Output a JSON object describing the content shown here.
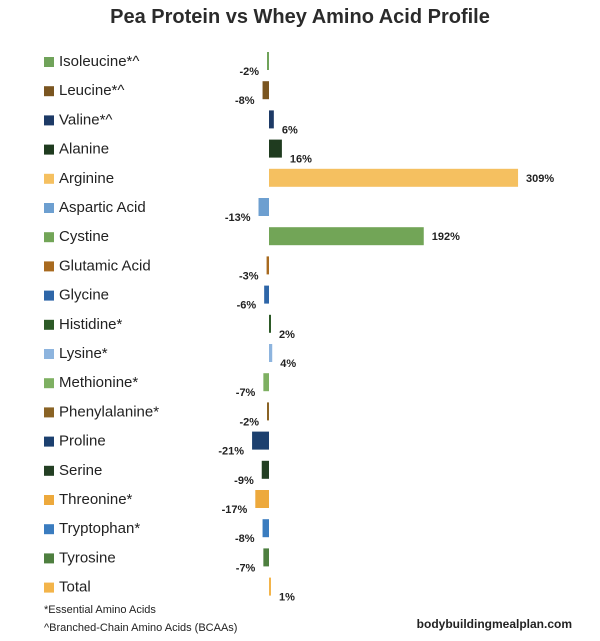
{
  "chart_data": {
    "type": "bar",
    "orientation": "horizontal",
    "title": "Pea Protein vs Whey Amino Acid Profile",
    "categories": [
      "Isoleucine*^",
      "Leucine*^",
      "Valine*^",
      "Alanine",
      "Arginine",
      "Aspartic Acid",
      "Cystine",
      "Glutamic Acid",
      "Glycine",
      "Histidine*",
      "Lysine*",
      "Methionine*",
      "Phenylalanine*",
      "Proline",
      "Serine",
      "Threonine*",
      "Tryptophan*",
      "Tyrosine",
      "Total"
    ],
    "values": [
      -2,
      -8,
      6,
      16,
      309,
      -13,
      192,
      -3,
      -6,
      2,
      4,
      -7,
      -2,
      -21,
      -9,
      -17,
      -8,
      -7,
      1
    ],
    "value_labels": [
      "-2%",
      "-8%",
      "6%",
      "16%",
      "309%",
      "-13%",
      "192%",
      "-3%",
      "-6%",
      "2%",
      "4%",
      "-7%",
      "-2%",
      "-21%",
      "-9%",
      "-17%",
      "-8%",
      "-7%",
      "1%"
    ],
    "colors": [
      "#70a35a",
      "#7a5520",
      "#1d3a66",
      "#1f3b1f",
      "#f5c060",
      "#6d9fd0",
      "#72a557",
      "#a86a1f",
      "#2e66a8",
      "#2d5a27",
      "#8db4de",
      "#7eb062",
      "#8a6325",
      "#1c406f",
      "#233f23",
      "#eda93c",
      "#3a7cbf",
      "#4e7f3f",
      "#f3b44a"
    ],
    "xlim": [
      -25,
      320
    ],
    "grid": false,
    "legend": "left, colored square beside each category label"
  },
  "footnotes": [
    "*Essential Amino Acids",
    "^Branched-Chain Amino Acids (BCAAs)"
  ],
  "source": "bodybuildingmealplan.com"
}
